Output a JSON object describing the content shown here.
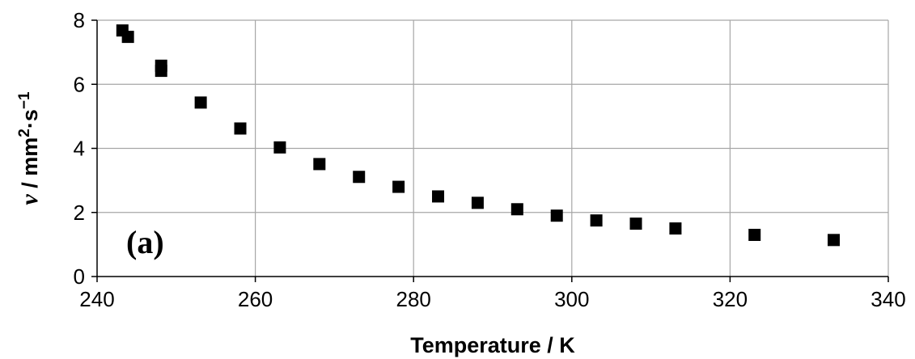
{
  "chart_data": {
    "type": "scatter",
    "xlabel": "Temperature / K",
    "ylabel": {
      "symbol": "ν",
      "rest": " / mm",
      "sup1": "2",
      "mid": "·s",
      "sup2": "−1"
    },
    "xlim": [
      240,
      340
    ],
    "ylim": [
      0,
      8
    ],
    "xticks": [
      240,
      260,
      280,
      300,
      320,
      340
    ],
    "yticks": [
      0,
      2,
      4,
      6,
      8
    ],
    "grid": true,
    "legend": "none",
    "marker": "square",
    "marker_color": "#000000",
    "annotation": "(a)",
    "points": [
      {
        "x": 243.2,
        "y": 7.68
      },
      {
        "x": 243.9,
        "y": 7.48
      },
      {
        "x": 248.1,
        "y": 6.58
      },
      {
        "x": 248.1,
        "y": 6.42
      },
      {
        "x": 253.1,
        "y": 5.43
      },
      {
        "x": 258.1,
        "y": 4.62
      },
      {
        "x": 263.1,
        "y": 4.03
      },
      {
        "x": 268.1,
        "y": 3.51
      },
      {
        "x": 273.1,
        "y": 3.11
      },
      {
        "x": 278.1,
        "y": 2.8
      },
      {
        "x": 283.1,
        "y": 2.5
      },
      {
        "x": 288.1,
        "y": 2.3
      },
      {
        "x": 293.1,
        "y": 2.1
      },
      {
        "x": 298.1,
        "y": 1.9
      },
      {
        "x": 303.1,
        "y": 1.75
      },
      {
        "x": 308.1,
        "y": 1.65
      },
      {
        "x": 313.1,
        "y": 1.5
      },
      {
        "x": 323.1,
        "y": 1.3
      },
      {
        "x": 333.1,
        "y": 1.14
      }
    ]
  }
}
